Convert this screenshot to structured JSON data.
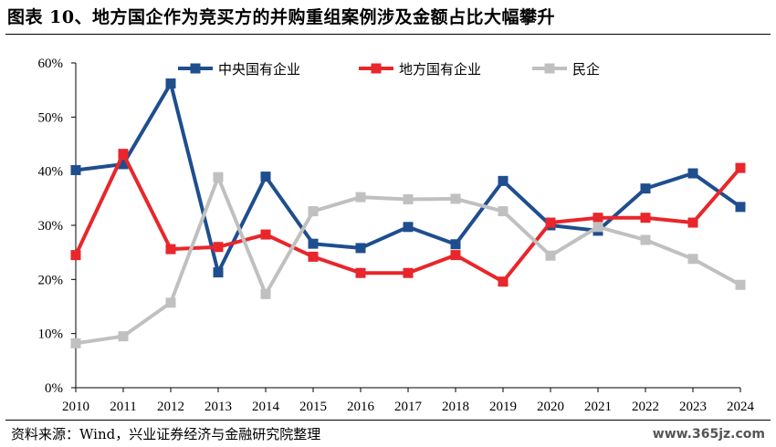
{
  "title": "图表 10、地方国企作为竞买方的并购重组案例涉及金额占比大幅攀升",
  "source": "资料来源：Wind，兴业证券经济与金融研究院整理",
  "watermark": "www.365jz.com",
  "chart_data": {
    "type": "line",
    "title": "图表 10、地方国企作为竞买方的并购重组案例涉及金额占比大幅攀升",
    "xlabel": "",
    "ylabel": "",
    "categories": [
      "2010",
      "2011",
      "2012",
      "2013",
      "2014",
      "2015",
      "2016",
      "2017",
      "2018",
      "2019",
      "2020",
      "2021",
      "2022",
      "2023",
      "2024"
    ],
    "ylim": [
      0,
      60
    ],
    "yticks": [
      0,
      10,
      20,
      30,
      40,
      50,
      60
    ],
    "ytick_labels": [
      "0%",
      "10%",
      "20%",
      "30%",
      "40%",
      "50%",
      "60%"
    ],
    "legend_position": "top",
    "series": [
      {
        "name": "中央国有企业",
        "color": "#1f4e8f",
        "values": [
          40.2,
          41.3,
          56.2,
          21.3,
          39.0,
          26.6,
          25.8,
          29.7,
          26.5,
          38.2,
          30.0,
          29.0,
          36.8,
          39.6,
          33.4
        ]
      },
      {
        "name": "地方国有企业",
        "color": "#e8262b",
        "values": [
          24.5,
          43.2,
          25.6,
          26.0,
          28.3,
          24.2,
          21.2,
          21.2,
          24.5,
          19.6,
          30.5,
          31.4,
          31.4,
          30.5,
          40.6
        ]
      },
      {
        "name": "民企",
        "color": "#c0c0c0",
        "values": [
          8.2,
          9.5,
          15.7,
          38.9,
          17.3,
          32.6,
          35.2,
          34.8,
          34.9,
          32.6,
          24.4,
          29.7,
          27.3,
          23.8,
          19.0
        ]
      }
    ]
  }
}
